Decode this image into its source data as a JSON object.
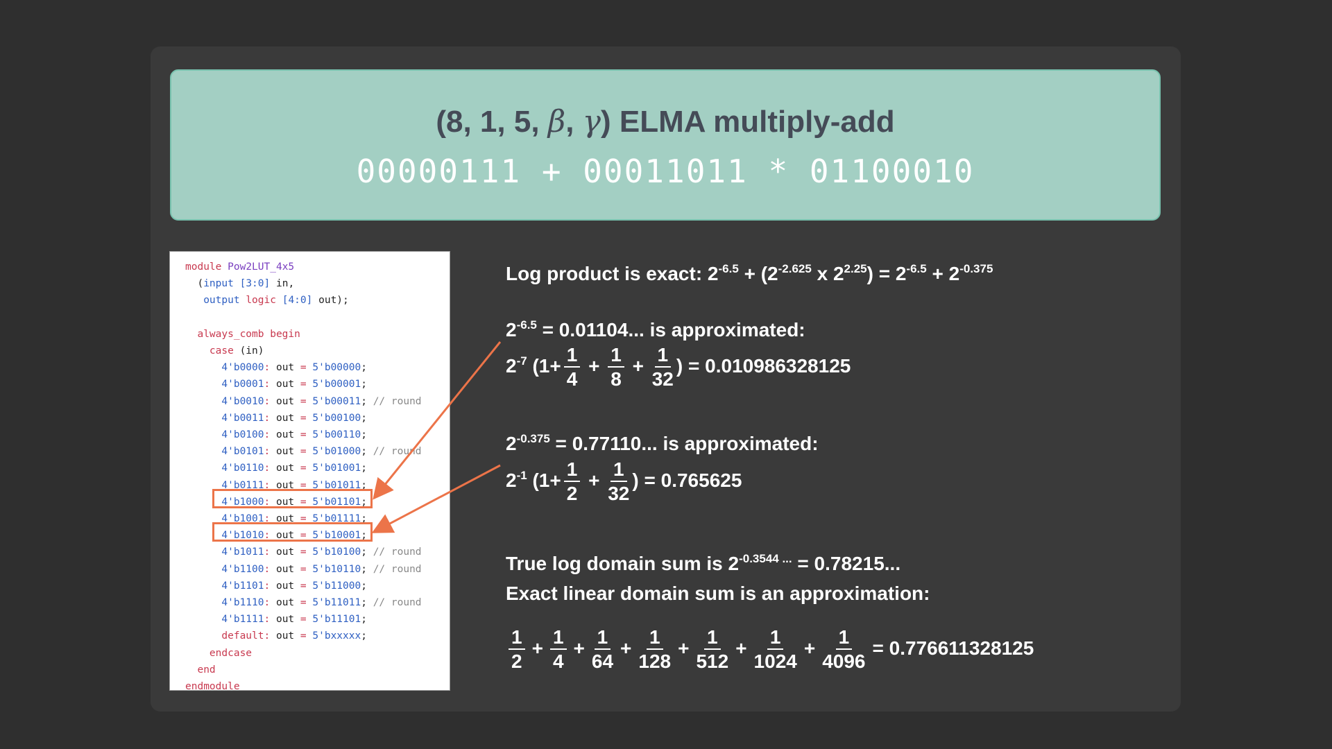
{
  "banner": {
    "title_prefix": "(8, 1, 5, ",
    "beta": "β",
    "sep": ", ",
    "gamma": "γ",
    "title_suffix": ") ELMA multiply-add",
    "expression": "00000111 + 00011011 * 01100010"
  },
  "code": {
    "l1": {
      "kw": "module",
      "name": "Pow2LUT_4x5"
    },
    "l2": {
      "pre": "  (",
      "kw": "input",
      "range": "[3:0]",
      "rest": " in,"
    },
    "l3": {
      "kw": "output",
      "kw2": "logic",
      "range": "[4:0]",
      "rest": " out);"
    },
    "l5": "always_comb begin",
    "l6": {
      "kw": "case",
      "rest": " (in)"
    },
    "cases": [
      {
        "in": "4'b0000",
        "out": "5'b00000",
        "comment": ""
      },
      {
        "in": "4'b0001",
        "out": "5'b00001",
        "comment": ""
      },
      {
        "in": "4'b0010",
        "out": "5'b00011",
        "comment": "// round"
      },
      {
        "in": "4'b0011",
        "out": "5'b00100",
        "comment": ""
      },
      {
        "in": "4'b0100",
        "out": "5'b00110",
        "comment": ""
      },
      {
        "in": "4'b0101",
        "out": "5'b01000",
        "comment": "// round"
      },
      {
        "in": "4'b0110",
        "out": "5'b01001",
        "comment": ""
      },
      {
        "in": "4'b0111",
        "out": "5'b01011",
        "comment": ""
      },
      {
        "in": "4'b1000",
        "out": "5'b01101",
        "comment": ""
      },
      {
        "in": "4'b1001",
        "out": "5'b01111",
        "comment": ""
      },
      {
        "in": "4'b1010",
        "out": "5'b10001",
        "comment": ""
      },
      {
        "in": "4'b1011",
        "out": "5'b10100",
        "comment": "// round"
      },
      {
        "in": "4'b1100",
        "out": "5'b10110",
        "comment": "// round"
      },
      {
        "in": "4'b1101",
        "out": "5'b11000",
        "comment": ""
      },
      {
        "in": "4'b1110",
        "out": "5'b11011",
        "comment": "// round"
      },
      {
        "in": "4'b1111",
        "out": "5'b11101",
        "comment": ""
      }
    ],
    "default": {
      "kw": "default",
      "out": "5'bxxxxx"
    },
    "out_word": "out",
    "endcase": "endcase",
    "end": "end",
    "endmodule": "endmodule"
  },
  "math": {
    "line1": {
      "a": "Log product is exact: 2",
      "e1": "-6.5",
      "b": " + (2",
      "e2": "-2.625",
      "c": " x 2",
      "e3": "2.25",
      "d": ") = 2",
      "e4": "-6.5",
      "f": " + 2",
      "e5": "-0.375"
    },
    "line2": {
      "a": "2",
      "e": "-6.5",
      "b": " = 0.01104... is approximated:"
    },
    "line3": {
      "a": "2",
      "e": "-7",
      "b": " (1+",
      "f1": [
        "1",
        "4"
      ],
      "f2": [
        "1",
        "8"
      ],
      "f3": [
        "1",
        "32"
      ],
      "c": ")  = 0.010986328125"
    },
    "line4": {
      "a": "2",
      "e": "-0.375",
      "b": " = 0.77110... is approximated:"
    },
    "line5": {
      "a": "2",
      "e": "-1",
      "b": " (1+",
      "f1": [
        "1",
        "2"
      ],
      "f2": [
        "1",
        "32"
      ],
      "c": ")   = 0.765625"
    },
    "line6": {
      "a": "True log domain sum is 2",
      "e": "-0.3544 ...",
      "b": " = 0.78215..."
    },
    "line7": "Exact linear domain sum is an approximation:",
    "line8": {
      "fracs": [
        [
          "1",
          "2"
        ],
        [
          "1",
          "4"
        ],
        [
          "1",
          "64"
        ],
        [
          "1",
          "128"
        ],
        [
          "1",
          "512"
        ],
        [
          "1",
          "1024"
        ],
        [
          "1",
          "4096"
        ]
      ],
      "plus": "+",
      "result": "= 0.776611328125"
    }
  },
  "colors": {
    "accent": "#ec7449",
    "banner": "#a3cfc3"
  }
}
